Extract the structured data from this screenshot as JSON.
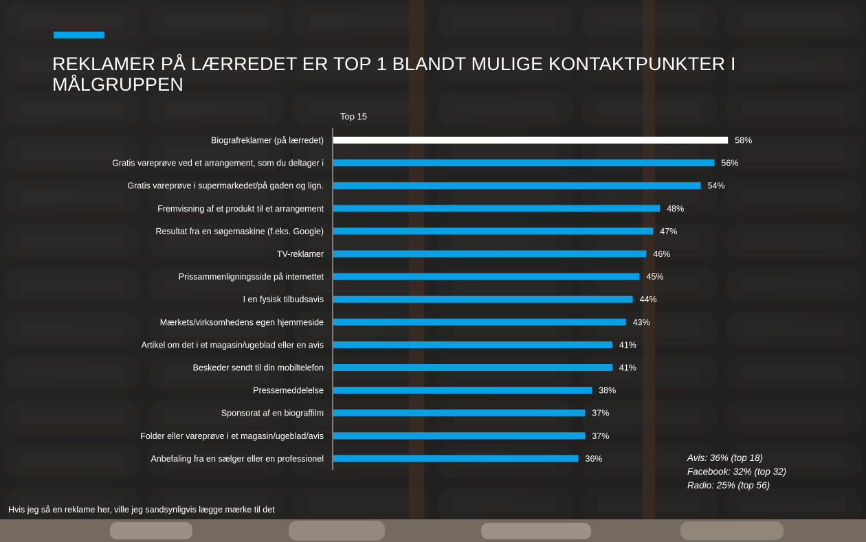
{
  "slide": {
    "title": "REKLAMER PÅ LÆRREDET ER TOP 1 BLANDT MULIGE KONTAKTPUNKTER I MÅLGRUPPEN",
    "chart_label": "Top 15",
    "footnote": "Hvis jeg så en reklame her, ville jeg sandsynligvis lægge mærke til det",
    "side_notes": [
      "Avis: 36% (top 18)",
      "Facebook: 32% (top 32)",
      "Radio: 25% (top 56)"
    ],
    "colors": {
      "accent": "#00a2e8",
      "highlight_bar": "#ffffff",
      "bar": "#0aa0e6",
      "background": "#262626"
    }
  },
  "chart_data": {
    "type": "bar",
    "orientation": "horizontal",
    "title": "Top 15",
    "xlim": [
      0,
      100
    ],
    "value_suffix": "%",
    "highlight_index": 0,
    "categories": [
      "Biografreklamer (på lærredet)",
      "Gratis vareprøve ved et arrangement, som du deltager i",
      "Gratis vareprøve i supermarkedet/på gaden og lign.",
      "Fremvisning af et produkt til et arrangement",
      "Resultat fra en søgemaskine (f.eks. Google)",
      "TV-reklamer",
      "Prissammenligningsside på internettet",
      "I en fysisk tilbudsavis",
      "Mærkets/virksomhedens egen hjemmeside",
      "Artikel om det i et magasin/ugeblad eller en avis",
      "Beskeder sendt til din mobiltelefon",
      "Pressemeddelelse",
      "Sponsorat af en biograffilm",
      "Folder eller vareprøve i et magasin/ugeblad/avis",
      "Anbefaling fra en sælger eller en professionel"
    ],
    "values": [
      58,
      56,
      54,
      48,
      47,
      46,
      45,
      44,
      43,
      41,
      41,
      38,
      37,
      37,
      36
    ]
  }
}
